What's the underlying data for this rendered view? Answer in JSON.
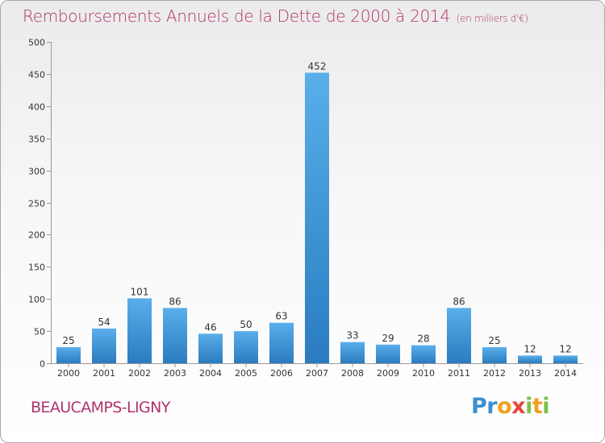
{
  "chart_data": {
    "type": "bar",
    "title": "Remboursements Annuels de la Dette de 2000 à 2014",
    "unit": "(en milliers d'€)",
    "categories": [
      "2000",
      "2001",
      "2002",
      "2003",
      "2004",
      "2005",
      "2006",
      "2007",
      "2008",
      "2009",
      "2010",
      "2011",
      "2012",
      "2013",
      "2014"
    ],
    "values": [
      25,
      54,
      101,
      86,
      46,
      50,
      63,
      452,
      33,
      29,
      28,
      86,
      25,
      12,
      12
    ],
    "ylim": [
      0,
      500
    ],
    "yticks": [
      0,
      50,
      100,
      150,
      200,
      250,
      300,
      350,
      400,
      450,
      500
    ],
    "grid": false,
    "bar_color": "#3a93d6"
  },
  "commune": "BEAUCAMPS-LIGNY",
  "logo": {
    "text": "Proxiti"
  }
}
